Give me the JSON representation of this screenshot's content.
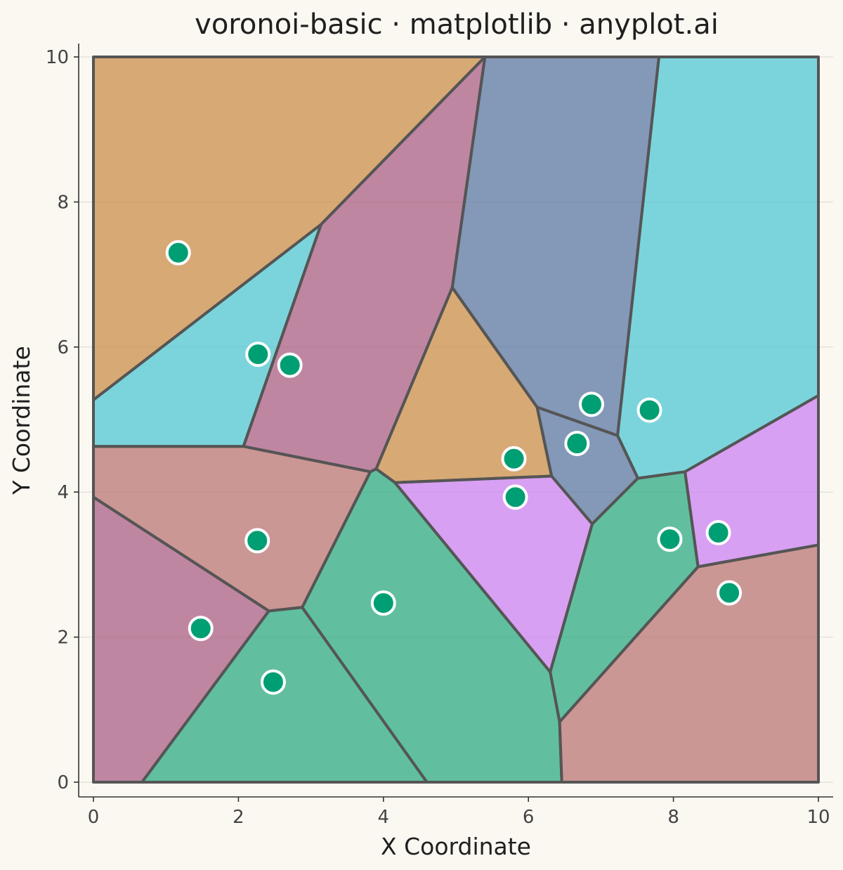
{
  "chart_data": {
    "type": "scatter",
    "title": "voronoi-basic · matplotlib · anyplot.ai",
    "xlabel": "X Coordinate",
    "ylabel": "Y Coordinate",
    "xlim": [
      0,
      10
    ],
    "ylim": [
      0,
      10
    ],
    "xticks": [
      0,
      2,
      4,
      6,
      8,
      10
    ],
    "yticks": [
      0,
      2,
      4,
      6,
      8,
      10
    ],
    "grid": "y-only",
    "seed_color": "#009E73",
    "points": [
      {
        "x": 1.17,
        "y": 7.3
      },
      {
        "x": 2.27,
        "y": 5.9
      },
      {
        "x": 2.71,
        "y": 5.75
      },
      {
        "x": 2.26,
        "y": 3.33
      },
      {
        "x": 1.48,
        "y": 2.12
      },
      {
        "x": 2.48,
        "y": 1.38
      },
      {
        "x": 4.0,
        "y": 2.47
      },
      {
        "x": 5.8,
        "y": 4.46
      },
      {
        "x": 5.82,
        "y": 3.93
      },
      {
        "x": 6.67,
        "y": 4.67
      },
      {
        "x": 6.87,
        "y": 5.21
      },
      {
        "x": 7.67,
        "y": 5.13
      },
      {
        "x": 7.95,
        "y": 3.35
      },
      {
        "x": 8.62,
        "y": 3.44
      },
      {
        "x": 8.77,
        "y": 2.61
      }
    ],
    "cells": [
      {
        "color": "#C7883F",
        "vertices": [
          [
            0,
            10
          ],
          [
            5.4,
            10
          ],
          [
            3.14,
            7.69
          ],
          [
            0,
            5.27
          ]
        ]
      },
      {
        "color": "#45C4D1",
        "vertices": [
          [
            0,
            5.27
          ],
          [
            3.14,
            7.69
          ],
          [
            2.07,
            4.63
          ],
          [
            0,
            4.63
          ]
        ]
      },
      {
        "color": "#A5557F",
        "vertices": [
          [
            3.14,
            7.69
          ],
          [
            5.4,
            10
          ],
          [
            4.95,
            6.82
          ],
          [
            3.9,
            4.32
          ],
          [
            3.82,
            4.28
          ],
          [
            2.07,
            4.63
          ]
        ]
      },
      {
        "color": "#516FA0",
        "vertices": [
          [
            5.4,
            10
          ],
          [
            7.8,
            10
          ],
          [
            7.23,
            4.78
          ],
          [
            6.12,
            5.17
          ],
          [
            4.95,
            6.82
          ]
        ]
      },
      {
        "color": "#45C4D1",
        "vertices": [
          [
            7.8,
            10
          ],
          [
            10,
            10
          ],
          [
            10,
            5.33
          ],
          [
            8.16,
            4.28
          ],
          [
            7.51,
            4.19
          ],
          [
            7.23,
            4.78
          ]
        ]
      },
      {
        "color": "#C7883F",
        "vertices": [
          [
            4.95,
            6.82
          ],
          [
            6.12,
            5.17
          ],
          [
            6.32,
            4.22
          ],
          [
            4.16,
            4.13
          ],
          [
            3.9,
            4.32
          ]
        ]
      },
      {
        "color": "#516FA0",
        "vertices": [
          [
            6.12,
            5.17
          ],
          [
            7.23,
            4.78
          ],
          [
            7.51,
            4.19
          ],
          [
            6.88,
            3.56
          ],
          [
            6.32,
            4.22
          ]
        ]
      },
      {
        "color": "#B56E6C",
        "vertices": [
          [
            0,
            4.63
          ],
          [
            2.07,
            4.63
          ],
          [
            3.82,
            4.28
          ],
          [
            2.88,
            2.41
          ],
          [
            2.42,
            2.36
          ],
          [
            0,
            3.93
          ]
        ]
      },
      {
        "color": "#A5557F",
        "vertices": [
          [
            0,
            3.93
          ],
          [
            2.42,
            2.36
          ],
          [
            0.67,
            0
          ],
          [
            0,
            0
          ]
        ]
      },
      {
        "color": "#1FA77C",
        "vertices": [
          [
            2.42,
            2.36
          ],
          [
            2.88,
            2.41
          ],
          [
            4.6,
            0
          ],
          [
            0.67,
            0
          ]
        ]
      },
      {
        "color": "#1FA77C",
        "vertices": [
          [
            3.82,
            4.28
          ],
          [
            3.9,
            4.32
          ],
          [
            4.16,
            4.13
          ],
          [
            6.3,
            1.52
          ],
          [
            6.43,
            0.83
          ],
          [
            6.46,
            0
          ],
          [
            4.6,
            0
          ],
          [
            2.88,
            2.41
          ]
        ]
      },
      {
        "color": "#C77BF2",
        "vertices": [
          [
            4.16,
            4.13
          ],
          [
            6.32,
            4.22
          ],
          [
            6.88,
            3.56
          ],
          [
            6.3,
            1.52
          ]
        ]
      },
      {
        "color": "#1FA77C",
        "vertices": [
          [
            7.51,
            4.19
          ],
          [
            8.16,
            4.28
          ],
          [
            8.34,
            2.97
          ],
          [
            6.43,
            0.83
          ],
          [
            6.3,
            1.52
          ],
          [
            6.88,
            3.56
          ]
        ]
      },
      {
        "color": "#C77BF2",
        "vertices": [
          [
            8.16,
            4.28
          ],
          [
            10,
            5.33
          ],
          [
            10,
            3.27
          ],
          [
            8.34,
            2.97
          ]
        ]
      },
      {
        "color": "#B56E6C",
        "vertices": [
          [
            8.34,
            2.97
          ],
          [
            10,
            3.27
          ],
          [
            10,
            0
          ],
          [
            6.46,
            0
          ],
          [
            6.43,
            0.83
          ]
        ]
      }
    ]
  }
}
